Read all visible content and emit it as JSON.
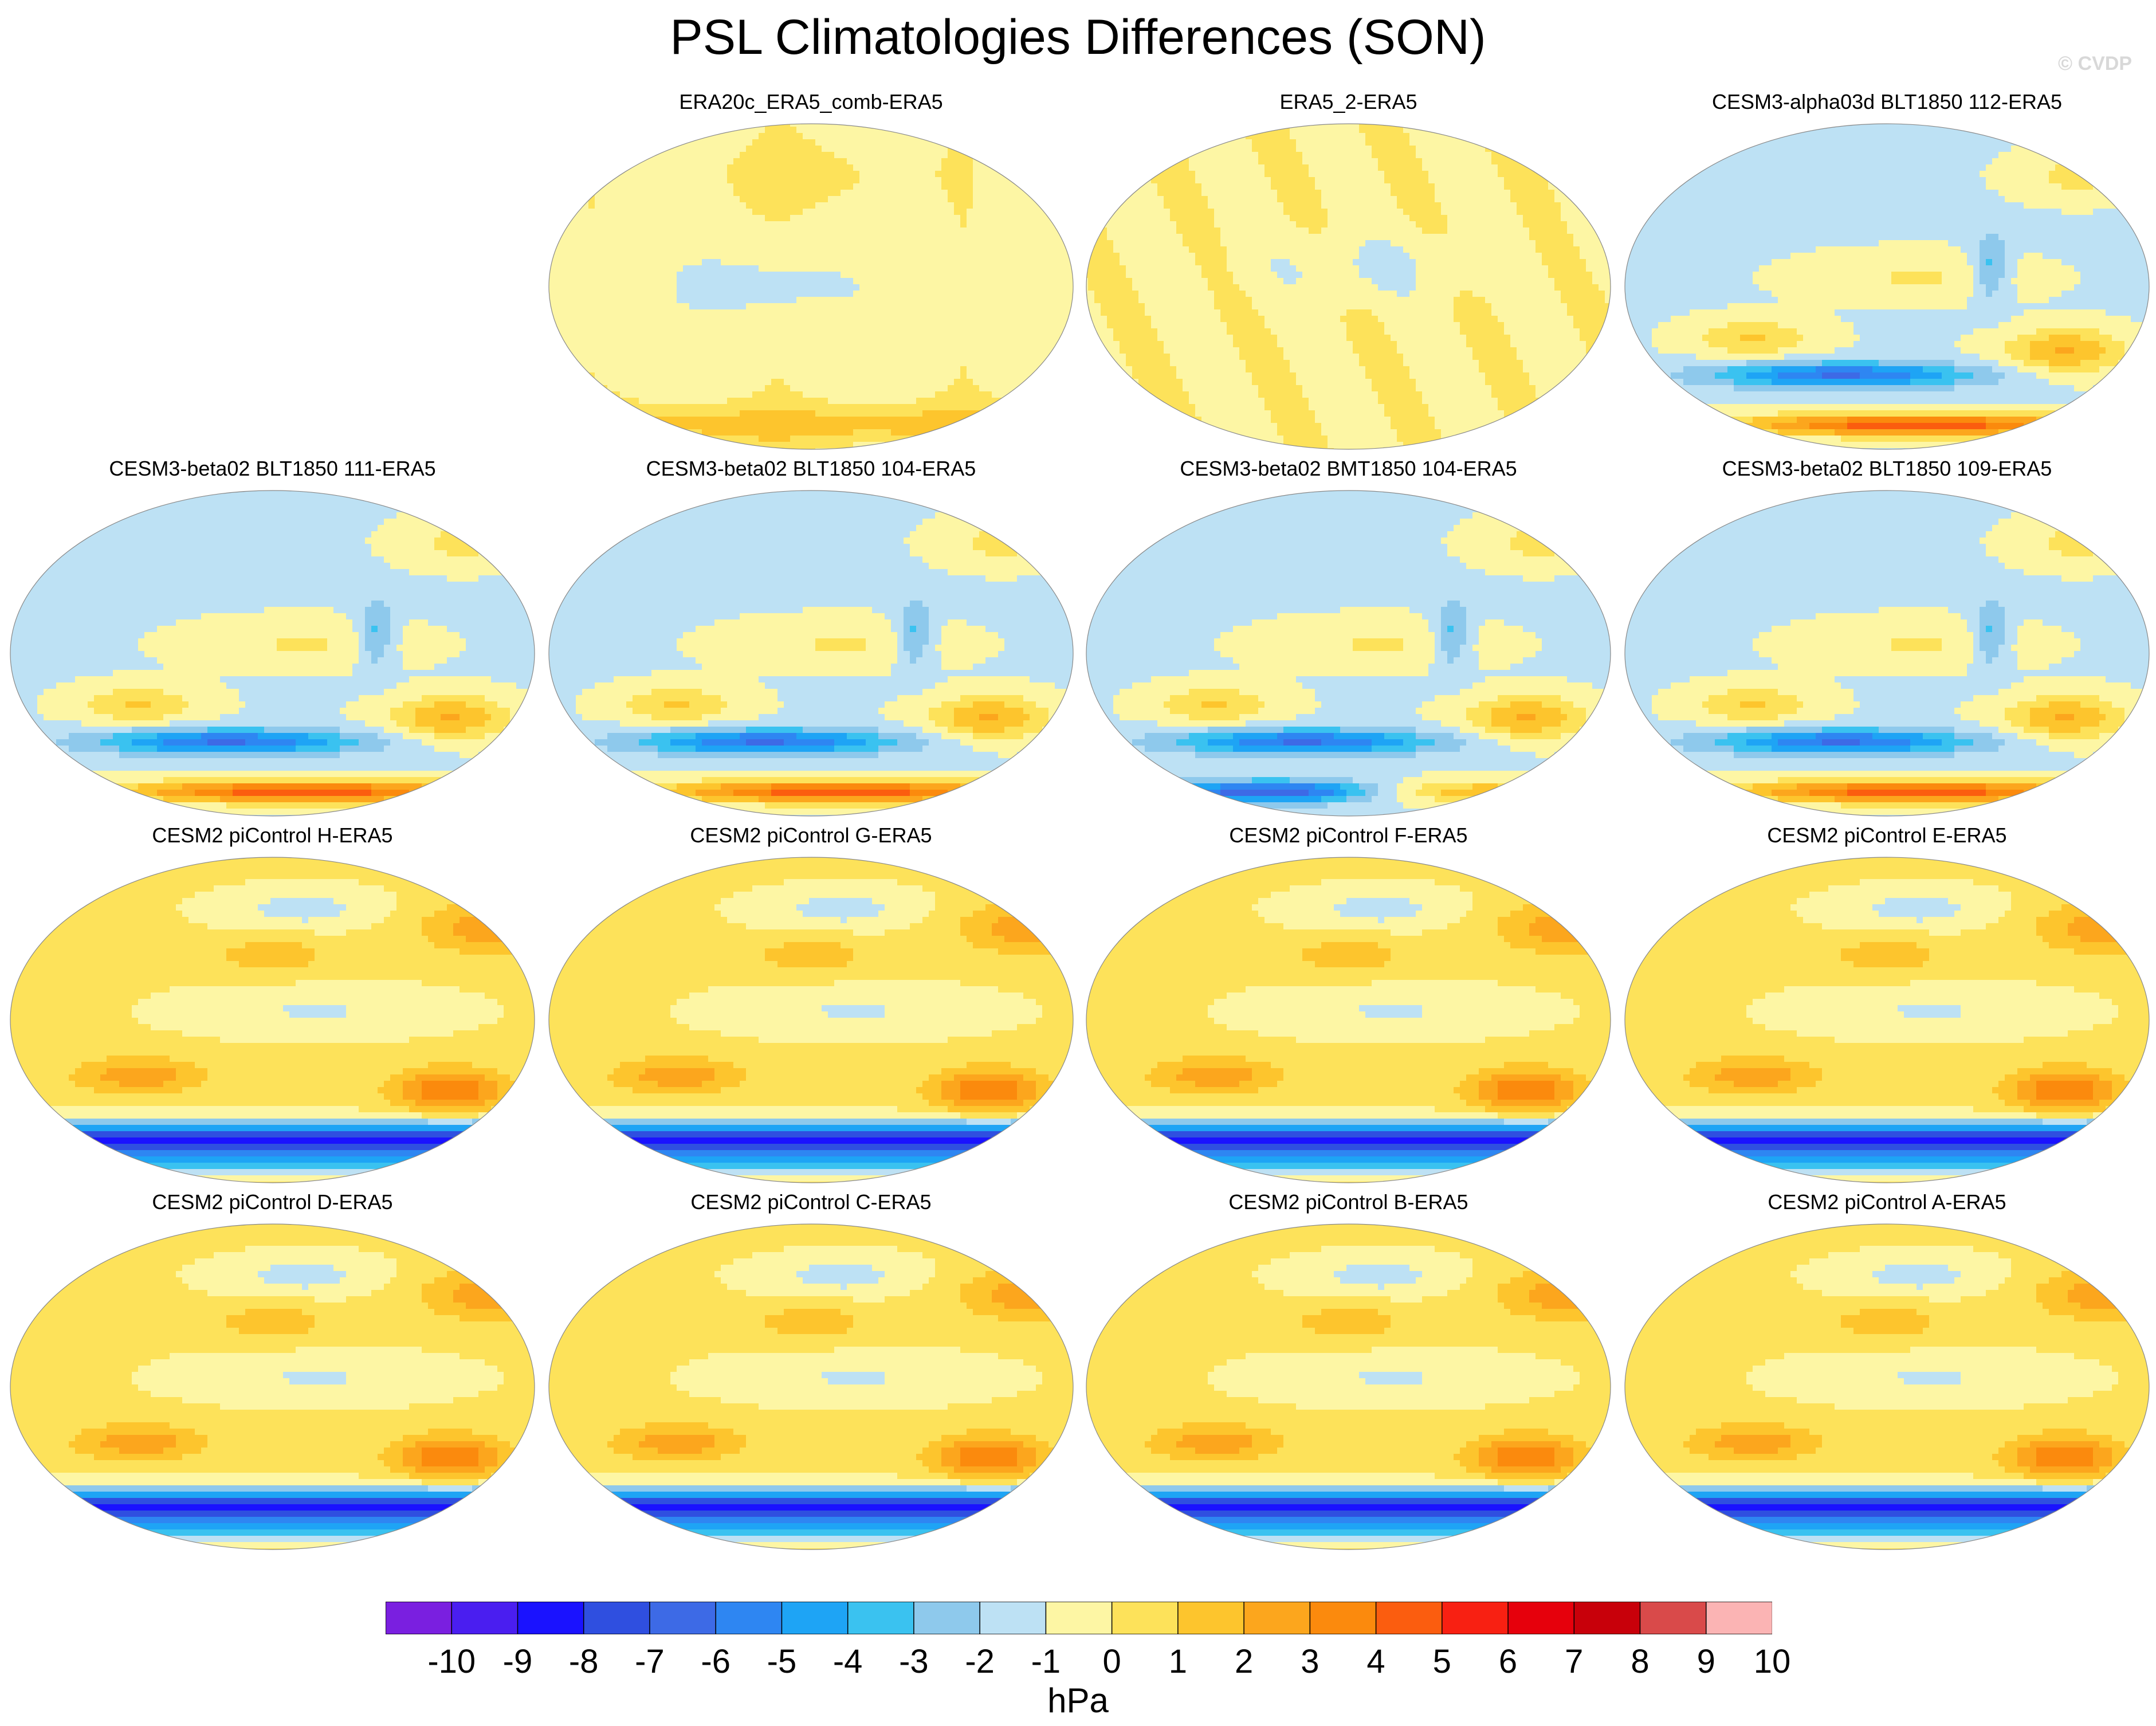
{
  "figure": {
    "title": "PSL Climatologies Differences (SON)",
    "credit": "© CVDP",
    "units": "hPa"
  },
  "chart_data": {
    "type": "heatmap",
    "projection": "robinson",
    "colorbar": {
      "levels": [
        "-10",
        "-9",
        "-8",
        "-7",
        "-6",
        "-5",
        "-4",
        "-3",
        "-2",
        "-1",
        "0",
        "1",
        "2",
        "3",
        "4",
        "5",
        "6",
        "7",
        "8",
        "9",
        "10"
      ],
      "colors": [
        "#7a1fe0",
        "#4a1ef0",
        "#1a12ff",
        "#2f4fe0",
        "#3d6ae6",
        "#2e86f2",
        "#1ea4f5",
        "#3ac2f0",
        "#8ec9ec",
        "#bde1f4",
        "#fdf6a4",
        "#fde25a",
        "#fdc52d",
        "#fca61d",
        "#fb8a0d",
        "#fb5d0f",
        "#f82012",
        "#e6000c",
        "#c8000a",
        "#d94a4a",
        "#fbb4b4"
      ]
    },
    "panels": [
      {
        "title": "ERA20c_ERA5_comb-ERA5",
        "pattern": "reanalysis"
      },
      {
        "title": "ERA5_2-ERA5",
        "pattern": "era5b"
      },
      {
        "title": "CESM3-alpha03d BLT1850 112-ERA5",
        "pattern": "cesm3"
      },
      {
        "title": "CESM3-beta02 BLT1850 111-ERA5",
        "pattern": "cesm3"
      },
      {
        "title": "CESM3-beta02 BLT1850 104-ERA5",
        "pattern": "cesm3"
      },
      {
        "title": "CESM3-beta02 BMT1850 104-ERA5",
        "pattern": "cesm3b"
      },
      {
        "title": "CESM3-beta02 BLT1850 109-ERA5",
        "pattern": "cesm3"
      },
      {
        "title": "CESM2 piControl H-ERA5",
        "pattern": "cesm2"
      },
      {
        "title": "CESM2 piControl G-ERA5",
        "pattern": "cesm2"
      },
      {
        "title": "CESM2 piControl F-ERA5",
        "pattern": "cesm2"
      },
      {
        "title": "CESM2 piControl E-ERA5",
        "pattern": "cesm2"
      },
      {
        "title": "CESM2 piControl D-ERA5",
        "pattern": "cesm2"
      },
      {
        "title": "CESM2 piControl C-ERA5",
        "pattern": "cesm2"
      },
      {
        "title": "CESM2 piControl B-ERA5",
        "pattern": "cesm2"
      },
      {
        "title": "CESM2 piControl A-ERA5",
        "pattern": "cesm2"
      }
    ]
  }
}
